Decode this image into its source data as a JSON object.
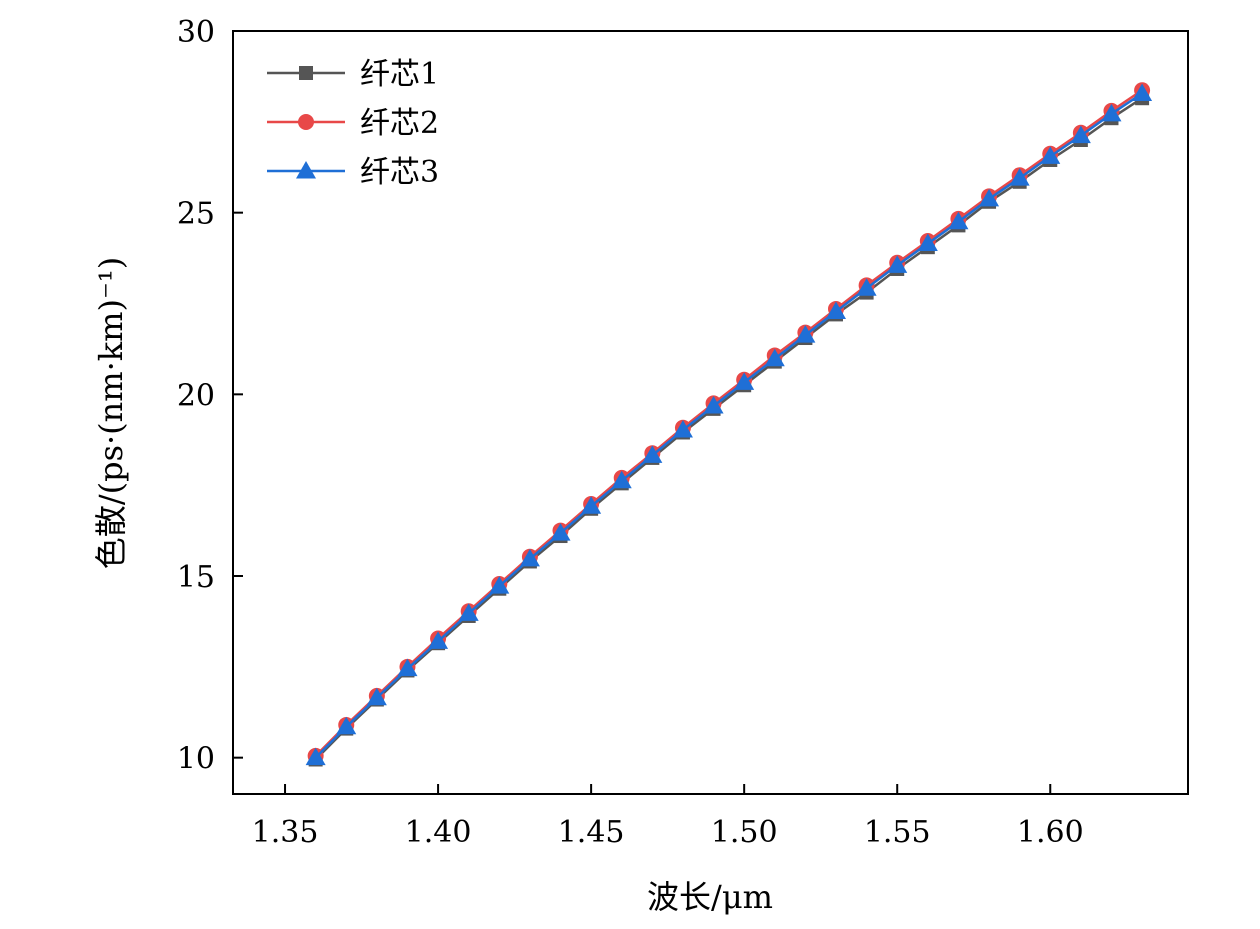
{
  "chart_data": {
    "type": "line",
    "title": "",
    "xlabel": "波长/μm",
    "ylabel": "色散/(ps·(nm·km)⁻¹)",
    "xlim": [
      1.333,
      1.645
    ],
    "ylim": [
      9,
      30
    ],
    "xticks": [
      "1.35",
      "1.40",
      "1.45",
      "1.50",
      "1.55",
      "1.60"
    ],
    "yticks": [
      "10",
      "15",
      "20",
      "25",
      "30"
    ],
    "grid": false,
    "legend_position": "top-left",
    "x": [
      1.36,
      1.37,
      1.38,
      1.39,
      1.4,
      1.41,
      1.42,
      1.43,
      1.44,
      1.45,
      1.46,
      1.47,
      1.48,
      1.49,
      1.5,
      1.51,
      1.52,
      1.53,
      1.54,
      1.55,
      1.56,
      1.57,
      1.58,
      1.59,
      1.6,
      1.61,
      1.62,
      1.63
    ],
    "series": [
      {
        "name": "纤芯1",
        "color": "#555555",
        "marker": "square",
        "values": [
          9.95,
          10.8,
          11.6,
          12.4,
          13.15,
          13.9,
          14.65,
          15.4,
          16.1,
          16.85,
          17.55,
          18.25,
          18.95,
          19.6,
          20.25,
          20.9,
          21.55,
          22.2,
          22.8,
          23.45,
          24.05,
          24.65,
          25.3,
          25.85,
          26.45,
          27.0,
          27.6,
          28.15
        ]
      },
      {
        "name": "纤芯2",
        "color": "#e84848",
        "marker": "circle",
        "values": [
          10.05,
          10.9,
          11.7,
          12.5,
          13.28,
          14.03,
          14.78,
          15.53,
          16.25,
          16.98,
          17.7,
          18.38,
          19.08,
          19.75,
          20.4,
          21.07,
          21.7,
          22.35,
          23.0,
          23.62,
          24.22,
          24.83,
          25.45,
          26.03,
          26.62,
          27.2,
          27.8,
          28.37
        ]
      },
      {
        "name": "纤芯3",
        "color": "#1f6fd6",
        "marker": "triangle",
        "values": [
          10.0,
          10.85,
          11.65,
          12.45,
          13.2,
          13.97,
          14.72,
          15.47,
          16.18,
          16.92,
          17.62,
          18.32,
          19.02,
          19.68,
          20.33,
          20.98,
          21.63,
          22.28,
          22.92,
          23.55,
          24.15,
          24.75,
          25.38,
          25.95,
          26.55,
          27.12,
          27.72,
          28.28
        ]
      }
    ]
  }
}
